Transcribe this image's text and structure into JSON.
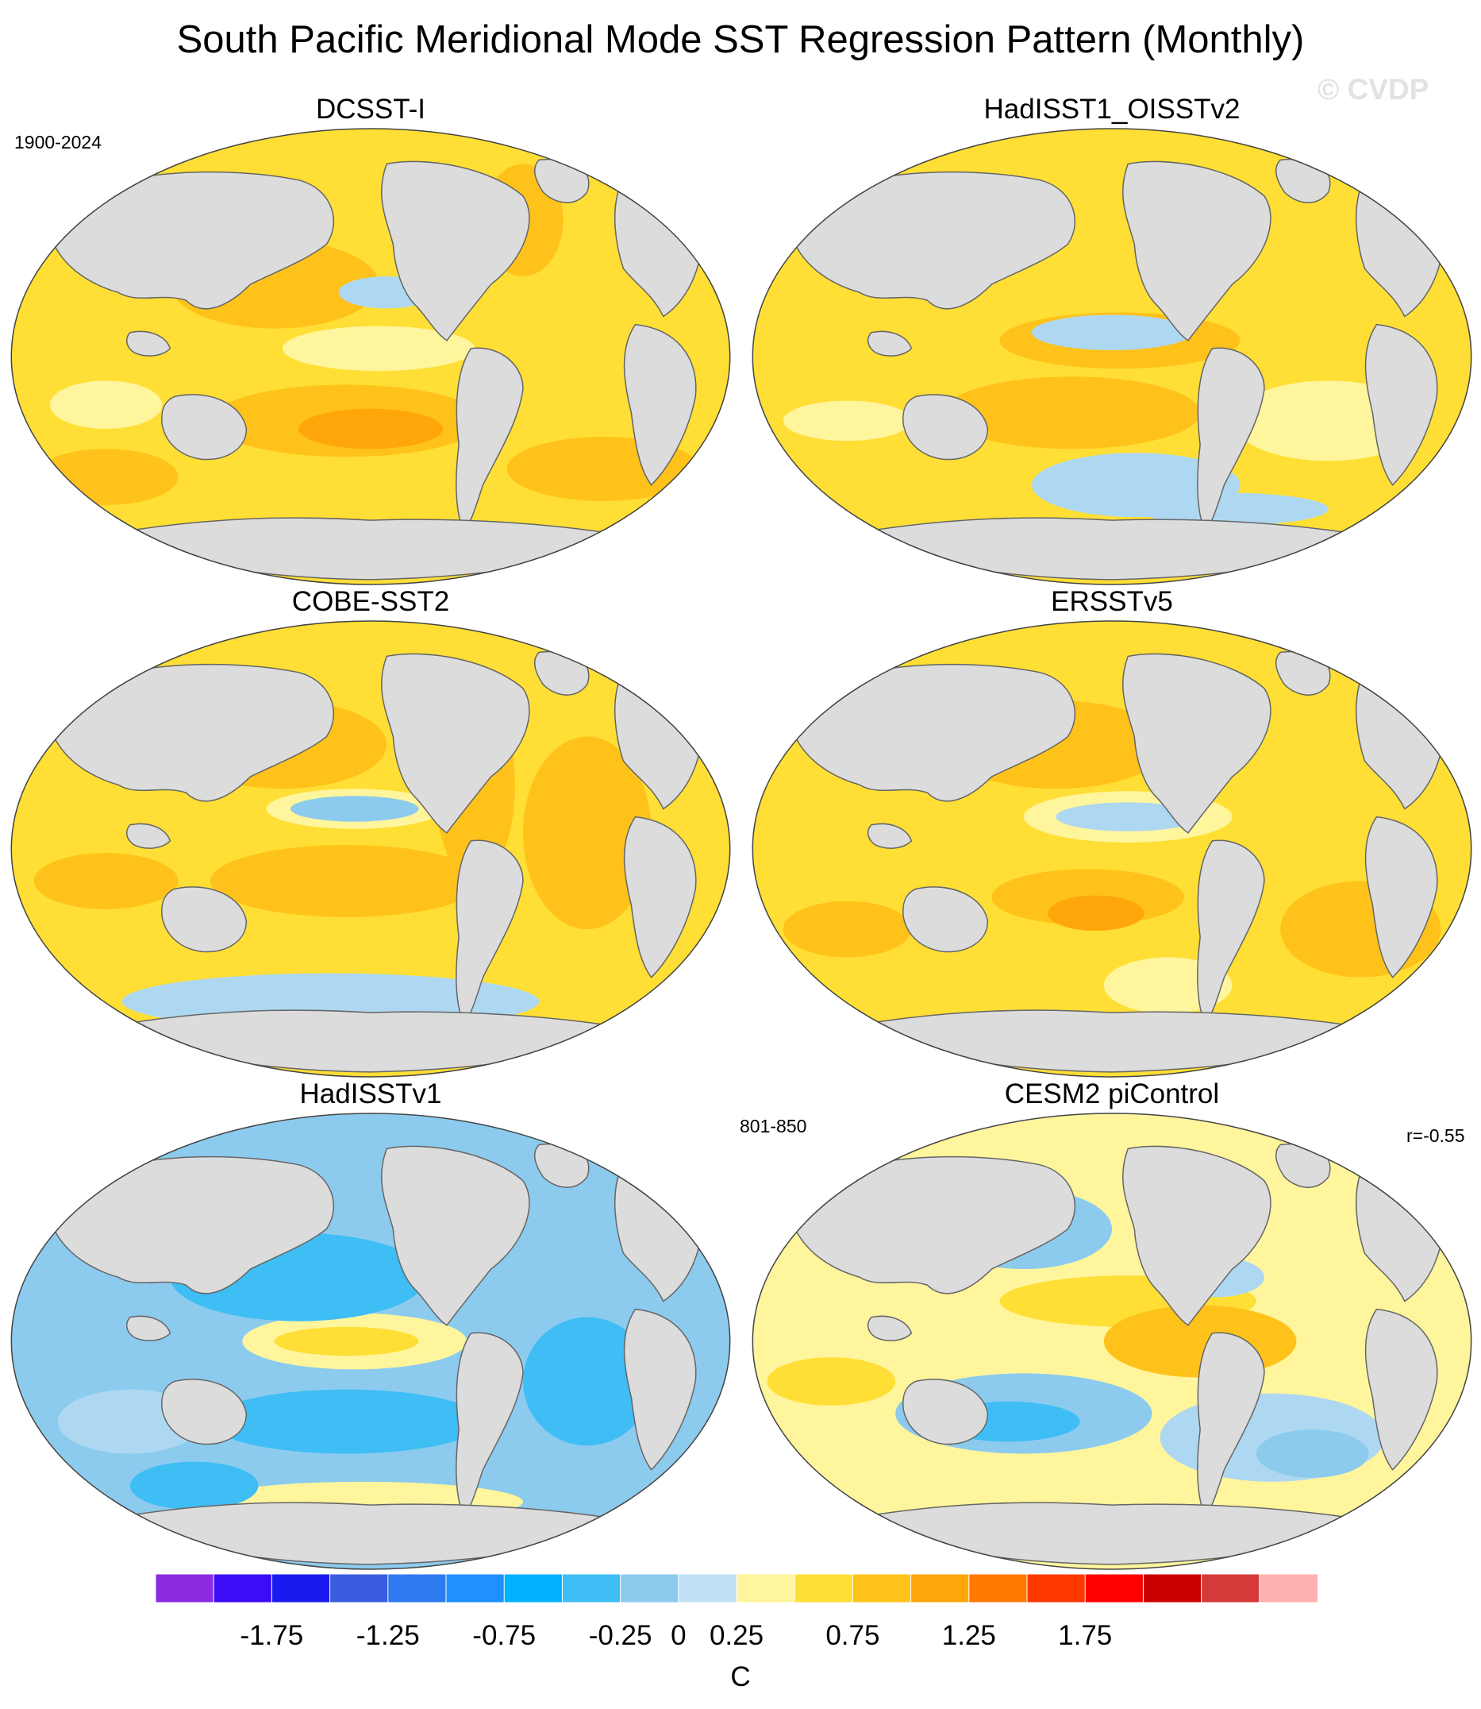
{
  "chart_data": {
    "type": "heatmap",
    "title": "South Pacific Meridional Mode SST Regression Pattern (Monthly)",
    "watermark": "© CVDP",
    "projection": "global map",
    "panels": [
      {
        "title": "DCSST-I",
        "period_label": "1900-2024",
        "r_label": "",
        "dominant_sign": "positive",
        "features": [
          {
            "region": "Tropical Pacific (north of equator)",
            "level": "-0.25 to 0"
          },
          {
            "region": "Central South Pacific",
            "level": "0.5 to 0.75"
          },
          {
            "region": "South Atlantic",
            "level": "0.25 to 0.5"
          },
          {
            "region": "Most other oceans",
            "level": "0 to 0.25"
          }
        ],
        "colors": {
          "background": "#ffdf35",
          "patches": [
            "#ffc21a",
            "#ffa70a",
            "#fff59d",
            "#aed8f2"
          ]
        }
      },
      {
        "title": "HadISST1_OISSTv2",
        "period_label": "",
        "r_label": "",
        "dominant_sign": "positive",
        "features": [
          {
            "region": "Equatorial Pacific",
            "level": "-0.25 to 0"
          },
          {
            "region": "Southern Ocean (Pacific sector)",
            "level": "-0.25 to 0"
          },
          {
            "region": "South Pacific",
            "level": "0.25 to 0.5"
          }
        ],
        "colors": {
          "background": "#ffdf35",
          "patches": [
            "#ffc21a",
            "#fff59d",
            "#aed8f2"
          ]
        }
      },
      {
        "title": "COBE-SST2",
        "period_label": "",
        "r_label": "",
        "dominant_sign": "positive",
        "features": [
          {
            "region": "Equatorial Pacific",
            "level": "-0.5 to -0.25"
          },
          {
            "region": "Southern Ocean",
            "level": "-0.25 to 0"
          },
          {
            "region": "North Pacific / Atlantic",
            "level": "0.25 to 0.5"
          }
        ],
        "colors": {
          "background": "#ffdf35",
          "patches": [
            "#ffc21a",
            "#fff59d",
            "#aed8f2",
            "#8ccbee"
          ]
        }
      },
      {
        "title": "ERSSTv5",
        "period_label": "",
        "r_label": "",
        "dominant_sign": "positive",
        "features": [
          {
            "region": "Equatorial Pacific",
            "level": "-0.5 to -0.25"
          },
          {
            "region": "Central South Pacific",
            "level": "0.5 to 0.75"
          },
          {
            "region": "Southeast Pacific",
            "level": "-0.25 to 0"
          }
        ],
        "colors": {
          "background": "#ffdf35",
          "patches": [
            "#ffc21a",
            "#ffa70a",
            "#fff59d",
            "#aed8f2"
          ]
        }
      },
      {
        "title": "HadISSTv1",
        "period_label": "",
        "r_label": "",
        "dominant_sign": "negative",
        "features": [
          {
            "region": "Most oceans",
            "level": "-0.5 to -0.25"
          },
          {
            "region": "Tropical Pacific",
            "level": "0 to 0.25"
          },
          {
            "region": "Indian / Atlantic",
            "level": "-0.75 to -0.5"
          }
        ],
        "colors": {
          "background": "#8ccbee",
          "patches": [
            "#3fbdf5",
            "#aed8f2",
            "#fff59d",
            "#ffdf35"
          ]
        }
      },
      {
        "title": "CESM2 piControl",
        "period_label": "801-850",
        "r_label": "r=-0.55",
        "dominant_sign": "mixed",
        "features": [
          {
            "region": "Northwest Pacific",
            "level": "-0.75 to -0.25"
          },
          {
            "region": "Eastern tropical Pacific",
            "level": "0.25 to 0.5"
          },
          {
            "region": "Southwest Pacific",
            "level": "-0.75 to -0.5"
          },
          {
            "region": "South Atlantic",
            "level": "-0.5 to -0.25"
          }
        ],
        "colors": {
          "background": "#fff59d",
          "patches": [
            "#ffdf35",
            "#ffc21a",
            "#aed8f2",
            "#8ccbee",
            "#3fbdf5"
          ]
        }
      }
    ],
    "colorbar": {
      "units": "C",
      "levels": [
        -2,
        -1.75,
        -1.5,
        -1.25,
        -1,
        -0.75,
        -0.5,
        -0.25,
        0,
        0.25,
        0.5,
        0.75,
        1,
        1.25,
        1.5,
        1.75,
        2
      ],
      "tick_labels": [
        "-1.75",
        "-1.25",
        "-0.75",
        "-0.25",
        "0",
        "0.25",
        "0.75",
        "1.25",
        "1.75"
      ],
      "tick_values": [
        -1.75,
        -1.25,
        -0.75,
        -0.25,
        0,
        0.25,
        0.75,
        1.25,
        1.75
      ],
      "colors": [
        "#8a2be2",
        "#3b0cf5",
        "#1a1aee",
        "#3a5de0",
        "#2e7bf0",
        "#1e90ff",
        "#00b2ff",
        "#3fbdf5",
        "#8ccbee",
        "#bfe2f6",
        "#fff59d",
        "#ffdf35",
        "#ffc21a",
        "#ffa70a",
        "#ff7a00",
        "#ff3800",
        "#ff0000",
        "#cc0000",
        "#d43a3a",
        "#ffb0b0"
      ]
    },
    "land_color": "#dcdcdc",
    "coast_color": "#666666"
  }
}
